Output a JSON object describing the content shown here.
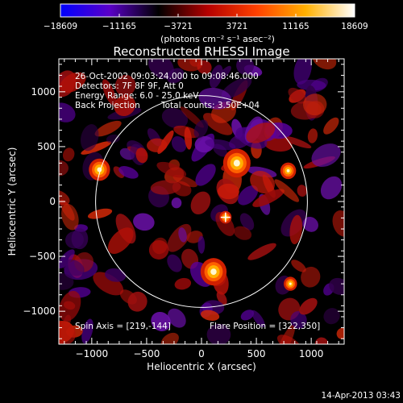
{
  "chart_data": {
    "type": "heatmap",
    "title": "Reconstructed RHESSI Image",
    "xlabel": "Heliocentric X (arcsec)",
    "ylabel": "Heliocentric Y (arcsec)",
    "xlim": [
      -1300,
      1300
    ],
    "ylim": [
      -1300,
      1300
    ],
    "x_ticks": [
      -1000,
      -500,
      0,
      500,
      1000
    ],
    "y_ticks": [
      -1000,
      -500,
      0,
      500,
      1000
    ],
    "x_tick_labels": [
      "−1000",
      "−500",
      "0",
      "500",
      "1000"
    ],
    "y_tick_labels": [
      "−1000",
      "−500",
      "0",
      "500",
      "1000"
    ],
    "colorbar": {
      "ticks": [
        -18609,
        -11165,
        -3721,
        3721,
        11165,
        18609
      ],
      "tick_labels": [
        "−18609",
        "−11165",
        "−3721",
        "3721",
        "11165",
        "18609"
      ],
      "range": [
        -18609,
        18609
      ],
      "units": "(photons cm⁻² s⁻¹ asec⁻²)",
      "colormap": [
        "#0000ff",
        "#5a00c8",
        "#000000",
        "#b40000",
        "#ff4000",
        "#ffb000",
        "#ffffff"
      ]
    },
    "annotations": {
      "time_range": "26-Oct-2002 09:03:24.000 to 09:08:46.000",
      "detectors": "Detectors: 7F 8F 9F, Att 0",
      "energy": "Energy Range: 6.0 - 25.0 keV",
      "method": "Back Projection",
      "counts": "Total counts: 3.50E+04",
      "spin_axis": "Spin Axis = [219,-144]",
      "flare_position": "Flare Position = [322,350]"
    },
    "solar_disk": {
      "center": [
        0,
        0
      ],
      "radius": 965
    },
    "sources": [
      {
        "x": 322,
        "y": 350,
        "intensity": 18609
      },
      {
        "x": 110,
        "y": -640,
        "intensity": 17500
      },
      {
        "x": -930,
        "y": 290,
        "intensity": 13500
      },
      {
        "x": 790,
        "y": 280,
        "intensity": 9000
      },
      {
        "x": 810,
        "y": -750,
        "intensity": 7000
      },
      {
        "x": 219,
        "y": -144,
        "intensity": 6000
      }
    ],
    "spin_axis_marker": {
      "x": 219,
      "y": -144
    },
    "grid": false
  },
  "footer": {
    "timestamp": "14-Apr-2013 03:43"
  }
}
